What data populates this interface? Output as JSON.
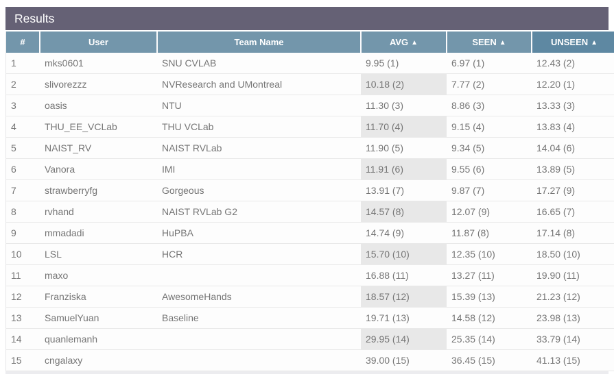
{
  "header": {
    "title": "Results"
  },
  "colors": {
    "title_bar_bg": "#656175",
    "column_header_bg": "#7396ab",
    "column_header_active_bg": "#5e88a2",
    "sorted_cell_bg": "#e8e8e8",
    "row_text": "#757575"
  },
  "table": {
    "columns": [
      {
        "key": "rank",
        "label": "#",
        "sort_icon": ""
      },
      {
        "key": "user",
        "label": "User",
        "sort_icon": ""
      },
      {
        "key": "team",
        "label": "Team Name",
        "sort_icon": ""
      },
      {
        "key": "avg",
        "label": "AVG",
        "sort_icon": "▲"
      },
      {
        "key": "seen",
        "label": "SEEN",
        "sort_icon": "▲"
      },
      {
        "key": "unseen",
        "label": "UNSEEN",
        "sort_icon": "▲"
      }
    ],
    "rows": [
      {
        "rank": "1",
        "user": "mks0601",
        "team": "SNU CVLAB",
        "avg": "9.95 (1)",
        "seen": "6.97 (1)",
        "unseen": "12.43 (2)"
      },
      {
        "rank": "2",
        "user": "slivorezzz",
        "team": "NVResearch and UMontreal",
        "avg": "10.18 (2)",
        "seen": "7.77 (2)",
        "unseen": "12.20 (1)"
      },
      {
        "rank": "3",
        "user": "oasis",
        "team": "NTU",
        "avg": "11.30 (3)",
        "seen": "8.86 (3)",
        "unseen": "13.33 (3)"
      },
      {
        "rank": "4",
        "user": "THU_EE_VCLab",
        "team": "THU VCLab",
        "avg": "11.70 (4)",
        "seen": "9.15 (4)",
        "unseen": "13.83 (4)"
      },
      {
        "rank": "5",
        "user": "NAIST_RV",
        "team": "NAIST RVLab",
        "avg": "11.90 (5)",
        "seen": "9.34 (5)",
        "unseen": "14.04 (6)"
      },
      {
        "rank": "6",
        "user": "Vanora",
        "team": "IMI",
        "avg": "11.91 (6)",
        "seen": "9.55 (6)",
        "unseen": "13.89 (5)"
      },
      {
        "rank": "7",
        "user": "strawberryfg",
        "team": "Gorgeous",
        "avg": "13.91 (7)",
        "seen": "9.87 (7)",
        "unseen": "17.27 (9)"
      },
      {
        "rank": "8",
        "user": "rvhand",
        "team": "NAIST RVLab G2",
        "avg": "14.57 (8)",
        "seen": "12.07 (9)",
        "unseen": "16.65 (7)"
      },
      {
        "rank": "9",
        "user": "mmadadi",
        "team": "HuPBA",
        "avg": "14.74 (9)",
        "seen": "11.87 (8)",
        "unseen": "17.14 (8)"
      },
      {
        "rank": "10",
        "user": "LSL",
        "team": "HCR",
        "avg": "15.70 (10)",
        "seen": "12.35 (10)",
        "unseen": "18.50 (10)"
      },
      {
        "rank": "11",
        "user": "maxo",
        "team": "",
        "avg": "16.88 (11)",
        "seen": "13.27 (11)",
        "unseen": "19.90 (11)"
      },
      {
        "rank": "12",
        "user": "Franziska",
        "team": "AwesomeHands",
        "avg": "18.57 (12)",
        "seen": "15.39 (13)",
        "unseen": "21.23 (12)"
      },
      {
        "rank": "13",
        "user": "SamuelYuan",
        "team": "Baseline",
        "avg": "19.71 (13)",
        "seen": "14.58 (12)",
        "unseen": "23.98 (13)"
      },
      {
        "rank": "14",
        "user": "quanlemanh",
        "team": "",
        "avg": "29.95 (14)",
        "seen": "25.35 (14)",
        "unseen": "33.79 (14)"
      },
      {
        "rank": "15",
        "user": "cngalaxy",
        "team": "",
        "avg": "39.00 (15)",
        "seen": "36.45 (15)",
        "unseen": "41.13 (15)"
      }
    ]
  }
}
